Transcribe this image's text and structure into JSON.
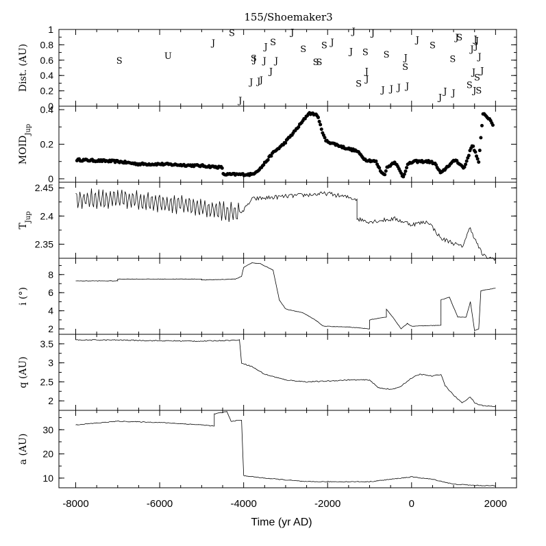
{
  "title": "155/Shoemaker3",
  "xlabel": "Time (yr AD)",
  "x_ticks": [
    "-8000",
    "-6000",
    "-4000",
    "-2000",
    "0",
    "2000"
  ],
  "chart_data": [
    {
      "type": "scatter",
      "panel": "encounters",
      "ylabel": "Dist. (AU)",
      "ylim": [
        0,
        1
      ],
      "yticks": [
        0,
        0.2,
        0.4,
        0.6,
        0.8,
        1
      ],
      "ytick_labels": [
        "0",
        "0.2",
        "0.4",
        "0.6",
        "0.8",
        "1"
      ],
      "points": [
        {
          "x": -6960,
          "y": 0.6,
          "label": "S"
        },
        {
          "x": -5800,
          "y": 0.66,
          "label": "U"
        },
        {
          "x": -4720,
          "y": 0.83,
          "label": "J"
        },
        {
          "x": -4280,
          "y": 0.96,
          "label": "S"
        },
        {
          "x": -4080,
          "y": 0.08,
          "label": "J"
        },
        {
          "x": -3820,
          "y": 0.32,
          "label": "J"
        },
        {
          "x": -3760,
          "y": 0.63,
          "label": "S"
        },
        {
          "x": -3740,
          "y": 0.61,
          "label": "J"
        },
        {
          "x": -3640,
          "y": 0.33,
          "label": "J"
        },
        {
          "x": -3580,
          "y": 0.35,
          "label": "J"
        },
        {
          "x": -3500,
          "y": 0.6,
          "label": "J"
        },
        {
          "x": -3470,
          "y": 0.78,
          "label": "J"
        },
        {
          "x": -3350,
          "y": 0.46,
          "label": "J"
        },
        {
          "x": -3300,
          "y": 0.84,
          "label": "S"
        },
        {
          "x": -3220,
          "y": 0.6,
          "label": "J"
        },
        {
          "x": -2840,
          "y": 0.97,
          "label": "J"
        },
        {
          "x": -2580,
          "y": 0.75,
          "label": "S"
        },
        {
          "x": -2280,
          "y": 0.58,
          "label": "S"
        },
        {
          "x": -2200,
          "y": 0.58,
          "label": "S"
        },
        {
          "x": -2080,
          "y": 0.8,
          "label": "S"
        },
        {
          "x": -1890,
          "y": 0.84,
          "label": "J"
        },
        {
          "x": -1440,
          "y": 0.72,
          "label": "J"
        },
        {
          "x": -1380,
          "y": 0.98,
          "label": "J"
        },
        {
          "x": -1260,
          "y": 0.3,
          "label": "S"
        },
        {
          "x": -1100,
          "y": 0.71,
          "label": "S"
        },
        {
          "x": -1070,
          "y": 0.46,
          "label": "J"
        },
        {
          "x": -1060,
          "y": 0.36,
          "label": "J"
        },
        {
          "x": -920,
          "y": 0.96,
          "label": "J"
        },
        {
          "x": -680,
          "y": 0.22,
          "label": "J"
        },
        {
          "x": -600,
          "y": 0.68,
          "label": "S"
        },
        {
          "x": -480,
          "y": 0.23,
          "label": "J"
        },
        {
          "x": -300,
          "y": 0.25,
          "label": "J"
        },
        {
          "x": -140,
          "y": 0.64,
          "label": "J"
        },
        {
          "x": -150,
          "y": 0.52,
          "label": "S"
        },
        {
          "x": -100,
          "y": 0.27,
          "label": "J"
        },
        {
          "x": 140,
          "y": 0.87,
          "label": "J"
        },
        {
          "x": 500,
          "y": 0.8,
          "label": "S"
        },
        {
          "x": 680,
          "y": 0.12,
          "label": "J"
        },
        {
          "x": 800,
          "y": 0.2,
          "label": "J"
        },
        {
          "x": 980,
          "y": 0.62,
          "label": "S"
        },
        {
          "x": 1000,
          "y": 0.18,
          "label": "J"
        },
        {
          "x": 1080,
          "y": 0.9,
          "label": "J"
        },
        {
          "x": 1140,
          "y": 0.9,
          "label": "S"
        },
        {
          "x": 1380,
          "y": 0.28,
          "label": "S"
        },
        {
          "x": 1440,
          "y": 0.75,
          "label": "J"
        },
        {
          "x": 1480,
          "y": 0.45,
          "label": "J"
        },
        {
          "x": 1500,
          "y": 0.21,
          "label": "J"
        },
        {
          "x": 1520,
          "y": 0.88,
          "label": "J"
        },
        {
          "x": 1540,
          "y": 0.79,
          "label": "J"
        },
        {
          "x": 1560,
          "y": 0.86,
          "label": "J"
        },
        {
          "x": 1560,
          "y": 0.38,
          "label": "S"
        },
        {
          "x": 1600,
          "y": 0.21,
          "label": "S"
        },
        {
          "x": 1620,
          "y": 0.65,
          "label": "J"
        },
        {
          "x": 1680,
          "y": 0.47,
          "label": "J"
        }
      ]
    },
    {
      "type": "scatter",
      "panel": "moid",
      "ylabel": "MOID",
      "ylabel_sub": "Jup",
      "ylim": [
        -0.02,
        0.42
      ],
      "yticks": [
        0,
        0.2,
        0.4
      ],
      "ytick_labels": [
        "0",
        "0.2",
        "0.4"
      ],
      "curve": [
        [
          -8000,
          0.11
        ],
        [
          -7000,
          0.1
        ],
        [
          -6500,
          0.085
        ],
        [
          -6000,
          0.085
        ],
        [
          -5000,
          0.075
        ],
        [
          -4500,
          0.065
        ],
        [
          -4500,
          0.025
        ],
        [
          -3800,
          0.025
        ],
        [
          -3600,
          0.06
        ],
        [
          -3300,
          0.15
        ],
        [
          -3050,
          0.2
        ],
        [
          -2800,
          0.27
        ],
        [
          -2600,
          0.33
        ],
        [
          -2450,
          0.38
        ],
        [
          -2250,
          0.37
        ],
        [
          -2200,
          0.33
        ],
        [
          -2050,
          0.22
        ],
        [
          -1600,
          0.18
        ],
        [
          -1300,
          0.16
        ],
        [
          -1100,
          0.11
        ],
        [
          -850,
          0.1
        ],
        [
          -750,
          0.05
        ],
        [
          -650,
          0.02
        ],
        [
          -600,
          0.06
        ],
        [
          -400,
          0.1
        ],
        [
          -200,
          0.01
        ],
        [
          -100,
          0.08
        ],
        [
          50,
          0.1
        ],
        [
          400,
          0.1
        ],
        [
          550,
          0.09
        ],
        [
          700,
          0.03
        ],
        [
          850,
          0.07
        ],
        [
          1050,
          0.11
        ],
        [
          1250,
          0.06
        ],
        [
          1450,
          0.2
        ],
        [
          1550,
          0.13
        ],
        [
          1600,
          0.09
        ],
        [
          1700,
          0.38
        ],
        [
          1800,
          0.36
        ],
        [
          1950,
          0.31
        ]
      ],
      "jitter": 0.006
    },
    {
      "type": "line",
      "panel": "tisserand",
      "ylabel": "T",
      "ylabel_sub": "Jup",
      "ylim": [
        2.325,
        2.46
      ],
      "yticks": [
        2.35,
        2.4,
        2.45
      ],
      "ytick_labels": [
        "2.35",
        "2.4",
        "2.45"
      ],
      "curve": [
        [
          -8000,
          2.43
        ],
        [
          -7000,
          2.43
        ],
        [
          -6000,
          2.425
        ],
        [
          -5000,
          2.415
        ],
        [
          -4200,
          2.405
        ],
        [
          -4000,
          2.41
        ],
        [
          -3800,
          2.43
        ],
        [
          -3000,
          2.435
        ],
        [
          -2000,
          2.44
        ],
        [
          -1300,
          2.43
        ],
        [
          -1300,
          2.395
        ],
        [
          -1000,
          2.39
        ],
        [
          -400,
          2.395
        ],
        [
          0,
          2.385
        ],
        [
          400,
          2.39
        ],
        [
          700,
          2.36
        ],
        [
          900,
          2.355
        ],
        [
          1200,
          2.345
        ],
        [
          1400,
          2.38
        ],
        [
          1500,
          2.36
        ],
        [
          1700,
          2.33
        ],
        [
          1850,
          2.325
        ],
        [
          2000,
          2.325
        ]
      ],
      "osc": {
        "x_end": -4100,
        "period": 90,
        "amp": 0.015
      }
    },
    {
      "type": "line",
      "panel": "inclination",
      "ylabel": "i (°)",
      "ylim": [
        1.4,
        9.8
      ],
      "yticks": [
        2,
        4,
        6,
        8
      ],
      "ytick_labels": [
        "2",
        "4",
        "6",
        "8"
      ],
      "curve": [
        [
          -8000,
          7.3
        ],
        [
          -7000,
          7.3
        ],
        [
          -7000,
          7.5
        ],
        [
          -5000,
          7.5
        ],
        [
          -5000,
          7.4
        ],
        [
          -4200,
          7.5
        ],
        [
          -4050,
          7.8
        ],
        [
          -4000,
          8.8
        ],
        [
          -3800,
          9.3
        ],
        [
          -3600,
          9.2
        ],
        [
          -3300,
          8.5
        ],
        [
          -3150,
          5.2
        ],
        [
          -3000,
          4.2
        ],
        [
          -2600,
          3.8
        ],
        [
          -2300,
          3.0
        ],
        [
          -2100,
          2.3
        ],
        [
          -1500,
          2.2
        ],
        [
          -1000,
          2.0
        ],
        [
          -1000,
          3.0
        ],
        [
          -600,
          3.3
        ],
        [
          -600,
          4.2
        ],
        [
          -400,
          3.0
        ],
        [
          -250,
          2.0
        ],
        [
          -100,
          2.6
        ],
        [
          0,
          2.3
        ],
        [
          700,
          2.4
        ],
        [
          700,
          5.2
        ],
        [
          900,
          5.5
        ],
        [
          1100,
          3.3
        ],
        [
          1300,
          3.3
        ],
        [
          1400,
          5.0
        ],
        [
          1500,
          1.8
        ],
        [
          1600,
          2.0
        ],
        [
          1650,
          6.2
        ],
        [
          2000,
          6.5
        ]
      ],
      "noise": 0.05
    },
    {
      "type": "line",
      "panel": "perihelion",
      "ylabel": "q (AU)",
      "ylim": [
        1.75,
        3.75
      ],
      "yticks": [
        2,
        2.5,
        3,
        3.5
      ],
      "ytick_labels": [
        "2",
        "2.5",
        "3",
        "3.5"
      ],
      "curve": [
        [
          -8000,
          3.6
        ],
        [
          -7000,
          3.6
        ],
        [
          -6000,
          3.58
        ],
        [
          -5000,
          3.57
        ],
        [
          -4100,
          3.6
        ],
        [
          -4050,
          3.0
        ],
        [
          -3800,
          2.9
        ],
        [
          -3500,
          2.7
        ],
        [
          -3000,
          2.55
        ],
        [
          -2500,
          2.5
        ],
        [
          -2000,
          2.52
        ],
        [
          -1500,
          2.55
        ],
        [
          -1000,
          2.55
        ],
        [
          -800,
          2.35
        ],
        [
          -500,
          2.3
        ],
        [
          -300,
          2.35
        ],
        [
          0,
          2.6
        ],
        [
          200,
          2.7
        ],
        [
          500,
          2.65
        ],
        [
          700,
          2.7
        ],
        [
          800,
          2.4
        ],
        [
          1000,
          2.15
        ],
        [
          1200,
          1.95
        ],
        [
          1400,
          2.1
        ],
        [
          1500,
          1.95
        ],
        [
          1600,
          1.9
        ],
        [
          1750,
          1.87
        ],
        [
          2000,
          1.85
        ]
      ],
      "noise": 0.025
    },
    {
      "type": "line",
      "panel": "semimajor",
      "ylabel": "a (AU)",
      "ylim": [
        6,
        38
      ],
      "yticks": [
        10,
        20,
        30
      ],
      "ytick_labels": [
        "10",
        "20",
        "30"
      ],
      "curve": [
        [
          -8000,
          32
        ],
        [
          -7000,
          33.5
        ],
        [
          -6000,
          33
        ],
        [
          -5000,
          32
        ],
        [
          -4700,
          31.5
        ],
        [
          -4700,
          36.5
        ],
        [
          -4400,
          37.5
        ],
        [
          -4300,
          33.5
        ],
        [
          -4050,
          34
        ],
        [
          -4000,
          11
        ],
        [
          -3500,
          10
        ],
        [
          -2500,
          8.5
        ],
        [
          -1500,
          8.5
        ],
        [
          -1000,
          8.5
        ],
        [
          0,
          10.5
        ],
        [
          500,
          9.5
        ],
        [
          1000,
          7.5
        ],
        [
          1500,
          7
        ],
        [
          2000,
          6.8
        ]
      ],
      "noise": 0.3
    }
  ]
}
